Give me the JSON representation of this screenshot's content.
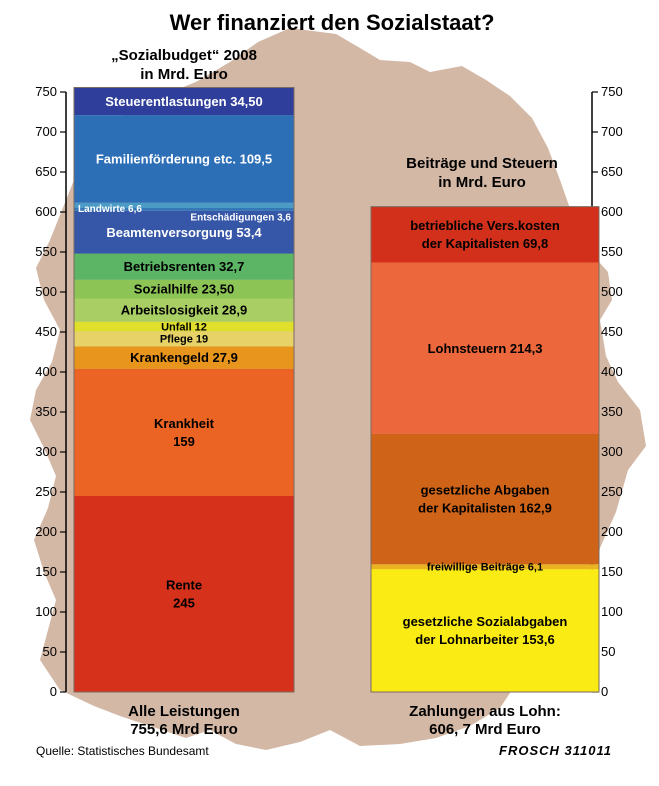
{
  "title": "Wer finanziert den Sozialstaat?",
  "left_caption": [
    "„Sozialbudget“ 2008",
    "in Mrd. Euro"
  ],
  "right_caption": [
    "Beiträge und Steuern",
    "in Mrd. Euro"
  ],
  "left_footer": [
    "Alle Leistungen",
    "755,6 Mrd Euro"
  ],
  "right_footer": [
    "Zahlungen aus Lohn:",
    "606, 7 Mrd Euro"
  ],
  "source": "Quelle: Statistisches Bundesamt",
  "signature": "FROSCH 311011",
  "colors": {
    "map": "#d4b8a6",
    "axis": "#000000"
  },
  "chart_data": {
    "type": "bar",
    "stacked": true,
    "ylim": [
      0,
      750
    ],
    "yticks": [
      0,
      50,
      100,
      150,
      200,
      250,
      300,
      350,
      400,
      450,
      500,
      550,
      600,
      650,
      700,
      750
    ],
    "grid": false,
    "bars": [
      {
        "total": 755.6,
        "segments": [
          {
            "label": "Rente\n245",
            "value": 245,
            "color": "#d5311b",
            "text_color": "#000000",
            "size": 13
          },
          {
            "label": "Krankheit\n159",
            "value": 159,
            "color": "#ec6423",
            "text_color": "#000000",
            "size": 13
          },
          {
            "label": "Krankengeld 27,9",
            "value": 27.9,
            "color": "#e8951e",
            "text_color": "#000000",
            "size": 13
          },
          {
            "label": "Pflege 19",
            "value": 19,
            "color": "#e6d266",
            "text_color": "#000000",
            "size": 11
          },
          {
            "label": "Unfall 12",
            "value": 12,
            "color": "#e0df2c",
            "text_color": "#000000",
            "size": 11
          },
          {
            "label": "Arbeitslosigkeit 28,9",
            "value": 28.9,
            "color": "#a9cf64",
            "text_color": "#000000",
            "size": 13
          },
          {
            "label": "Sozialhilfe 23,50",
            "value": 23.5,
            "color": "#8cc556",
            "text_color": "#000000",
            "size": 13
          },
          {
            "label": "Betriebsrenten 32,7",
            "value": 32.7,
            "color": "#5bb565",
            "text_color": "#000000",
            "size": 13
          },
          {
            "label": "Beamtenversorgung 53,4",
            "value": 53.4,
            "color": "#3656a8",
            "text_color": "#ffffff",
            "size": 13
          },
          {
            "label": "Entschädigungen 3,6",
            "value": 3.6,
            "color": "#3578b8",
            "text_color": "#ffffff",
            "size": 10
          },
          {
            "label": "Landwirte 6,6",
            "value": 6.6,
            "color": "#4c9bc6",
            "text_color": "#ffffff",
            "size": 10
          },
          {
            "label": "Familienförderung etc. 109,5",
            "value": 109.5,
            "color": "#2d6fb7",
            "text_color": "#ffffff",
            "size": 13
          },
          {
            "label": "Steuerentlastungen 34,50",
            "value": 34.5,
            "color": "#2f3e9a",
            "text_color": "#ffffff",
            "size": 13
          }
        ]
      },
      {
        "total": 606.7,
        "segments": [
          {
            "label": "gesetzliche Sozialabgaben\nder Lohnarbeiter 153,6",
            "value": 153.6,
            "color": "#fbeb14",
            "text_color": "#000000",
            "size": 13
          },
          {
            "label": "freiwillige Beiträge 6,1",
            "value": 6.1,
            "color": "#e9b321",
            "text_color": "#000000",
            "size": 11
          },
          {
            "label": "gesetzliche Abgaben\nder Kapitalisten 162,9",
            "value": 162.9,
            "color": "#cf6418",
            "text_color": "#000000",
            "size": 13
          },
          {
            "label": "Lohnsteuern 214,3",
            "value": 214.3,
            "color": "#ec673b",
            "text_color": "#000000",
            "size": 13
          },
          {
            "label": "betriebliche Vers.kosten\nder Kapitalisten 69,8",
            "value": 69.8,
            "color": "#d3301c",
            "text_color": "#000000",
            "size": 13
          }
        ]
      }
    ]
  }
}
